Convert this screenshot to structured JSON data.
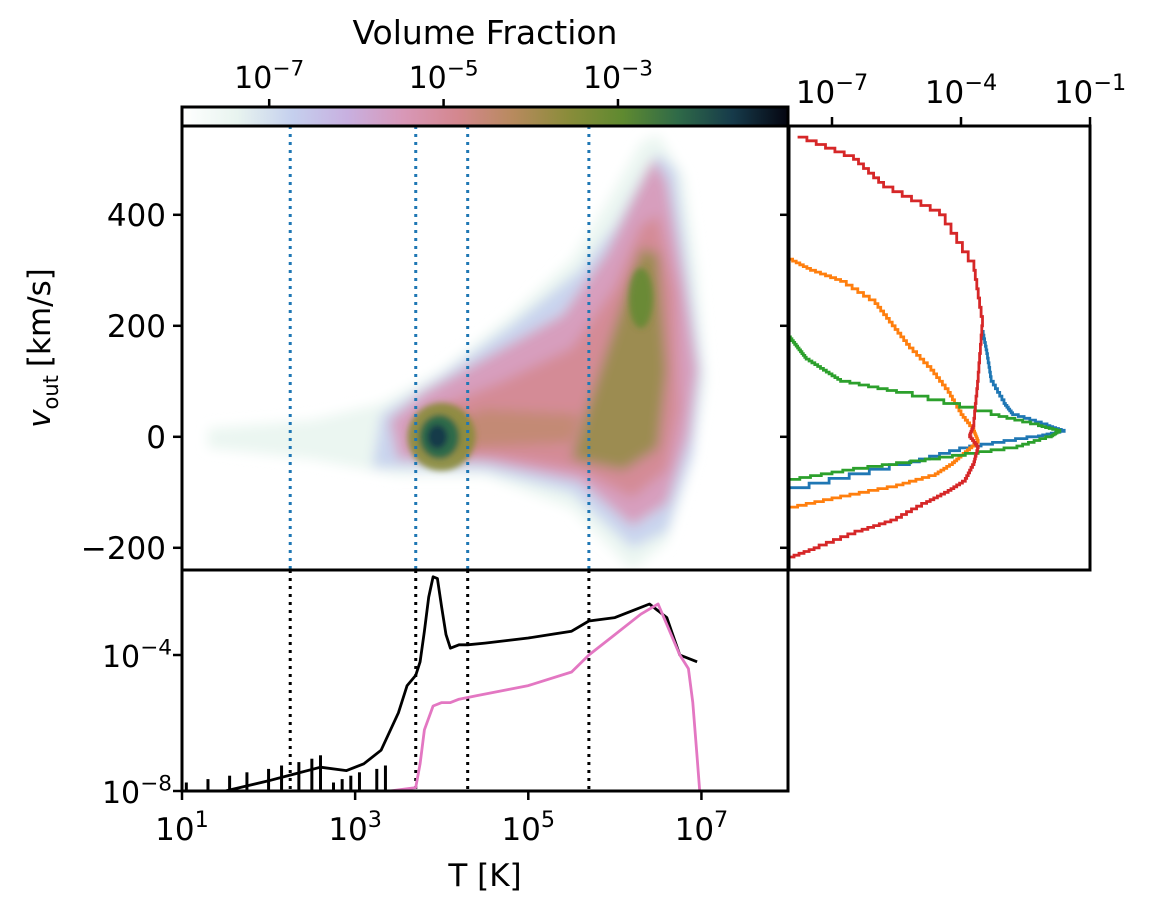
{
  "colorbar": {
    "label": "Volume Fraction",
    "scale": "log",
    "tick_exponents": [
      -7,
      -5,
      -3
    ],
    "tick_base": "10",
    "colors": [
      "#ffffff",
      "#e8f4ef",
      "#c5d0ee",
      "#c8b0e0",
      "#d898b8",
      "#d4878f",
      "#b88a5e",
      "#8a8c3a",
      "#5f8a30",
      "#2f6a48",
      "#163a4a",
      "#050510"
    ]
  },
  "colors": {
    "reference_line_main": "#1f77b4",
    "reference_line_bottom": "#000000",
    "total_curve": "#000000",
    "outflow_curve": "#e377c2",
    "series": [
      "#1f77b4",
      "#ff7f0e",
      "#2ca02c",
      "#d62728"
    ]
  },
  "chart_data": [
    {
      "type": "heatmap",
      "panel": "main",
      "xlabel": "",
      "ylabel_main": "v",
      "ylabel_sub": "out",
      "ylabel_unit": "[km/s]",
      "x_scale": "log",
      "xlim": [
        1,
        8
      ],
      "ylim": [
        -240,
        560
      ],
      "y_ticks": [
        400,
        200,
        0,
        -200
      ],
      "y_tick_labels": [
        "400",
        "200",
        "0",
        "−200"
      ],
      "reference_lines_logT": [
        2.25,
        3.7,
        4.3,
        5.7
      ],
      "features": [
        {
          "region": "dense peak",
          "logT": 3.95,
          "v": 0,
          "level": 1.0
        },
        {
          "region": "warm plateau",
          "logT": [
            3.6,
            5.8
          ],
          "v": [
            -60,
            120
          ],
          "level": 0.55
        },
        {
          "region": "hot outflow",
          "logT": [
            5.8,
            7.0
          ],
          "v": [
            -220,
            540
          ],
          "level": 0.6
        },
        {
          "region": "hot core",
          "logT": 6.3,
          "v": 250,
          "level": 0.75
        }
      ]
    },
    {
      "type": "line",
      "panel": "bottom",
      "xlabel": "T [K]",
      "x_scale": "log",
      "xlim": [
        1,
        8
      ],
      "x_tick_exponents": [
        1,
        3,
        5,
        7
      ],
      "y_scale": "log",
      "ylim_exponent": [
        -8,
        -1.5
      ],
      "y_tick_exponents": [
        -4,
        -8
      ],
      "series": [
        {
          "color_key": "total_curve",
          "logT": [
            1.0,
            1.5,
            2.0,
            2.3,
            2.6,
            2.9,
            3.1,
            3.3,
            3.5,
            3.6,
            3.7,
            3.75,
            3.8,
            3.85,
            3.9,
            3.95,
            4.0,
            4.05,
            4.1,
            4.2,
            4.3,
            4.5,
            5.0,
            5.5,
            5.7,
            6.0,
            6.2,
            6.4,
            6.6,
            6.75,
            6.95
          ],
          "log_value": [
            -8.0,
            -8.0,
            -7.7,
            -7.5,
            -7.3,
            -7.4,
            -7.2,
            -6.8,
            -5.7,
            -4.9,
            -4.6,
            -4.2,
            -3.3,
            -2.3,
            -1.7,
            -1.75,
            -2.6,
            -3.4,
            -3.8,
            -3.7,
            -3.7,
            -3.65,
            -3.5,
            -3.3,
            -3.0,
            -2.9,
            -2.7,
            -2.5,
            -2.9,
            -4.0,
            -4.2
          ]
        },
        {
          "color_key": "outflow_curve",
          "logT": [
            3.4,
            3.7,
            3.75,
            3.8,
            3.9,
            4.0,
            4.1,
            4.2,
            4.4,
            5.0,
            5.5,
            5.7,
            6.0,
            6.3,
            6.5,
            6.75,
            6.85,
            6.9,
            6.95,
            6.98
          ],
          "log_value": [
            -8.0,
            -7.9,
            -7.2,
            -6.2,
            -5.5,
            -5.4,
            -5.4,
            -5.3,
            -5.2,
            -4.9,
            -4.5,
            -4.0,
            -3.4,
            -2.8,
            -2.5,
            -4.0,
            -4.4,
            -5.4,
            -7.0,
            -8.0
          ]
        }
      ]
    },
    {
      "type": "line",
      "panel": "right",
      "x_scale": "log",
      "x_tick_exponents": [
        -7,
        -4,
        -1
      ],
      "xlim_exponent": [
        -8,
        -1
      ],
      "ylim": [
        -240,
        560
      ],
      "series": [
        {
          "color_key": 0,
          "v": [
            -240,
            -100,
            -50,
            -20,
            0,
            10,
            20,
            40,
            60,
            100,
            150,
            190
          ],
          "log_frac": [
            -8,
            -8,
            -5.2,
            -3.8,
            -2.2,
            -1.6,
            -2.0,
            -2.8,
            -3.0,
            -3.3,
            -3.4,
            -3.5
          ]
        },
        {
          "color_key": 1,
          "v": [
            -130,
            -110,
            -90,
            -70,
            -50,
            -30,
            -10,
            10,
            40,
            80,
            120,
            160,
            200,
            240,
            280,
            300,
            320
          ],
          "log_frac": [
            -8,
            -6.8,
            -5.5,
            -4.6,
            -4.2,
            -3.9,
            -3.6,
            -3.7,
            -4.0,
            -4.3,
            -4.7,
            -5.2,
            -5.6,
            -6.0,
            -6.8,
            -7.5,
            -8
          ]
        },
        {
          "color_key": 2,
          "v": [
            -80,
            -60,
            -40,
            -20,
            0,
            10,
            20,
            40,
            80,
            100,
            120,
            140,
            160,
            180
          ],
          "log_frac": [
            -8,
            -6.5,
            -4.5,
            -2.7,
            -1.9,
            -1.7,
            -2.2,
            -3.3,
            -5.5,
            -6.8,
            -7.2,
            -7.6,
            -7.8,
            -8
          ]
        },
        {
          "color_key": 3,
          "v": [
            -220,
            -200,
            -170,
            -150,
            -120,
            -100,
            -80,
            -50,
            -20,
            0,
            20,
            100,
            200,
            300,
            400,
            450,
            500,
            540
          ],
          "log_frac": [
            -8,
            -7.3,
            -6.3,
            -5.5,
            -4.8,
            -4.3,
            -3.9,
            -3.7,
            -3.6,
            -3.8,
            -3.7,
            -3.6,
            -3.5,
            -3.7,
            -4.5,
            -5.8,
            -6.5,
            -7.8
          ]
        }
      ]
    }
  ]
}
